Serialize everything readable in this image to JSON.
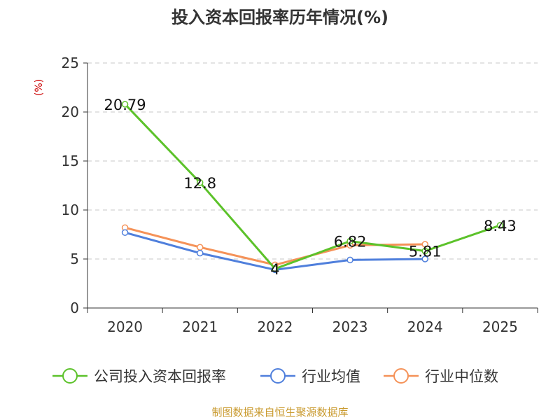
{
  "chart_data": {
    "type": "line",
    "title": "投入资本回报率历年情况(%)",
    "y_unit": "(%)",
    "ylim": [
      0,
      25
    ],
    "y_ticks": [
      "0",
      "5",
      "10",
      "15",
      "20",
      "25"
    ],
    "categories": [
      "2020",
      "2021",
      "2022",
      "2023",
      "2024",
      "2025"
    ],
    "grid": true,
    "legend_position": "bottom",
    "series": [
      {
        "name": "公司投入资本回报率",
        "color": "#5cc22a",
        "values": [
          20.79,
          12.8,
          4,
          6.82,
          5.81,
          8.43
        ],
        "labels": [
          "20.79",
          "12.8",
          "4",
          "6.82",
          "5.81",
          "8.43"
        ]
      },
      {
        "name": "行业均值",
        "color": "#4f7fdc",
        "values": [
          7.7,
          5.6,
          3.9,
          4.9,
          5.0,
          null
        ]
      },
      {
        "name": "行业中位数",
        "color": "#f59258",
        "values": [
          8.2,
          6.2,
          4.4,
          6.4,
          6.5,
          null
        ]
      }
    ]
  },
  "source": "制图数据来自恒生聚源数据库"
}
